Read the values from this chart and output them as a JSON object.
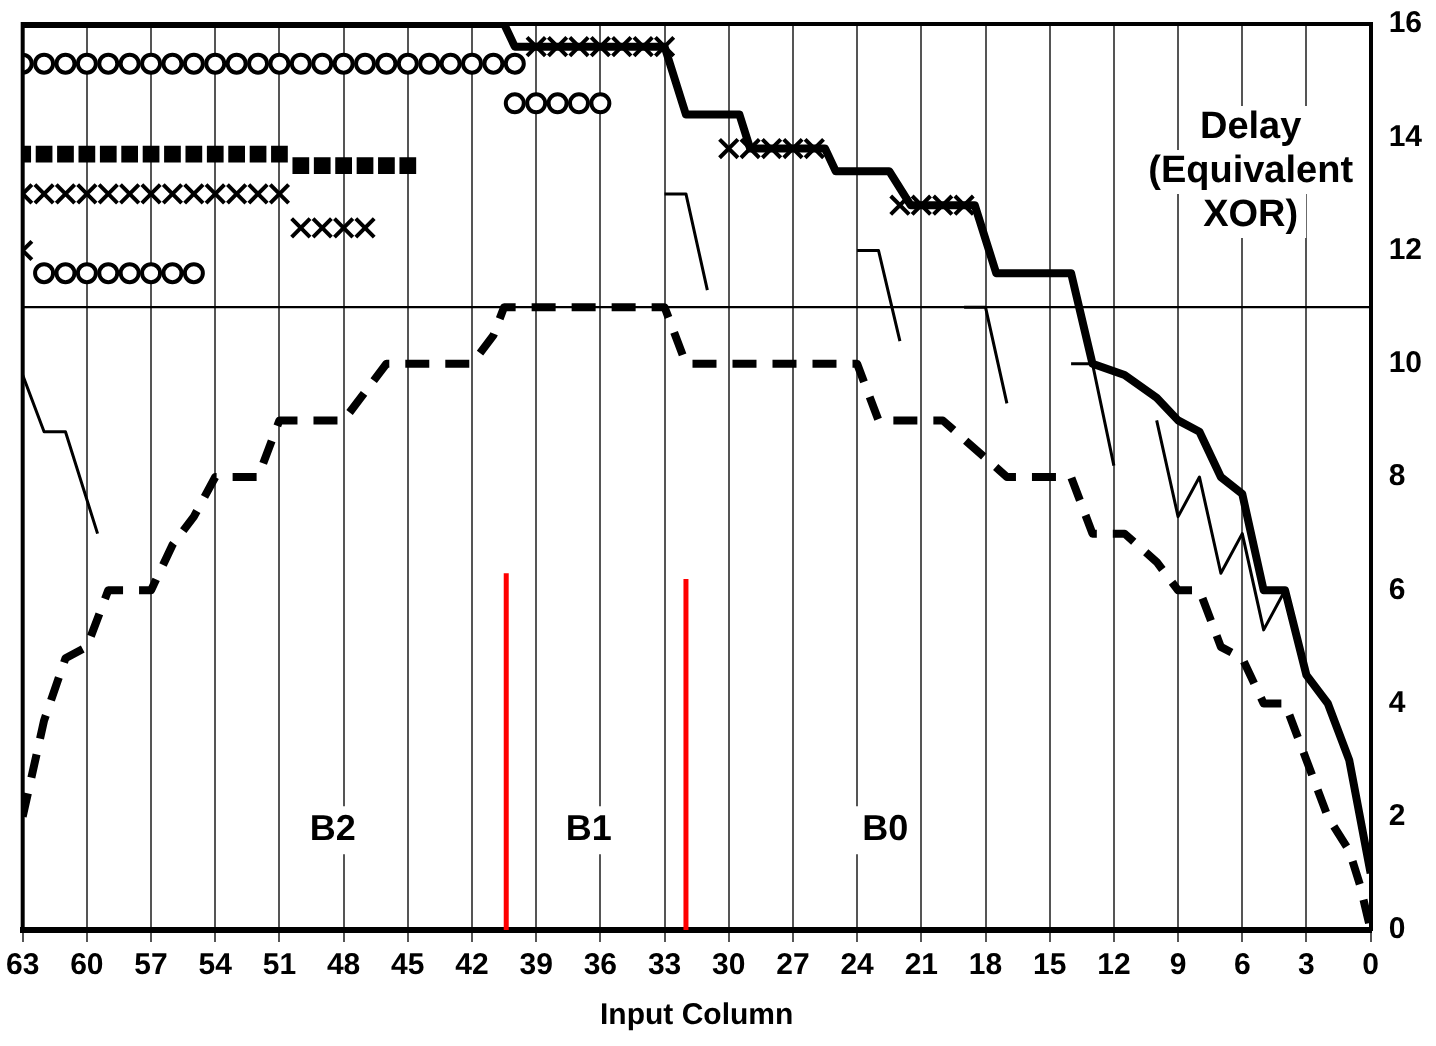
{
  "chart_data": {
    "type": "line",
    "xlabel": "Input Column",
    "ylabel": "Delay (Equivalent XOR)",
    "xlim": [
      63,
      0
    ],
    "xticks": [
      63,
      60,
      57,
      54,
      51,
      48,
      45,
      42,
      39,
      36,
      33,
      30,
      27,
      24,
      21,
      18,
      15,
      12,
      9,
      6,
      3,
      0
    ],
    "ylim": [
      0,
      16
    ],
    "yticks": [
      0,
      2,
      4,
      6,
      8,
      10,
      12,
      14,
      16
    ],
    "grid": "x",
    "ref_lines": [
      {
        "axis": "y",
        "value": 11,
        "color": "#000000"
      }
    ],
    "annotations": [
      "B2",
      "B1",
      "B0"
    ],
    "series": [
      {
        "color": "#000000",
        "line_style": "solid",
        "x": [
          63,
          40.5,
          40,
          33,
          32,
          29.5,
          29,
          25.5,
          25,
          22.5,
          21.5,
          18.5,
          17.5,
          14,
          13,
          11.5,
          10,
          9,
          8,
          7,
          6,
          5,
          4,
          3,
          2,
          1,
          0
        ],
        "values": [
          16,
          16,
          15.6,
          15.6,
          14.4,
          14.4,
          13.8,
          13.8,
          13.4,
          13.4,
          12.8,
          12.8,
          11.6,
          11.6,
          10,
          9.8,
          9.4,
          9,
          8.8,
          8,
          7.7,
          6,
          6,
          4.5,
          4,
          3,
          1
        ]
      },
      {
        "color": "#000000",
        "line_style": "dashed",
        "x": [
          63,
          62,
          61,
          60,
          59,
          57,
          56,
          55,
          54,
          52,
          51,
          48,
          46,
          42,
          41,
          40.5,
          33,
          32,
          24,
          23,
          20,
          17,
          14,
          13,
          11.5,
          10,
          9,
          8,
          7,
          6,
          5,
          4,
          3,
          2,
          1,
          0.5,
          0
        ],
        "values": [
          2,
          3.7,
          4.8,
          5,
          6,
          6,
          6.8,
          7.3,
          8,
          8,
          9,
          9,
          10,
          10,
          10.5,
          11,
          11,
          10,
          10,
          9,
          9,
          8,
          8,
          7,
          7,
          6.5,
          6,
          6,
          5,
          4.8,
          4,
          4,
          3,
          2,
          1.4,
          0.8,
          0
        ]
      },
      {
        "color": "#000000",
        "line_style": "solid",
        "x": [
          63,
          62,
          61,
          59.5,
          59,
          33,
          32,
          31,
          30,
          24,
          23,
          22,
          21,
          19,
          18,
          17,
          16,
          14,
          13,
          12,
          11,
          10,
          9,
          8,
          7,
          6,
          5,
          4
        ],
        "values": [
          9.8,
          8.8,
          8.8,
          7,
          null,
          13,
          13,
          11.3,
          null,
          12,
          12,
          10.4,
          null,
          11,
          11,
          9.3,
          null,
          10,
          10,
          8.2,
          null,
          9,
          7.3,
          8,
          6.3,
          7,
          5.3,
          6
        ]
      },
      {
        "type": "scatter",
        "marker": "circle",
        "color": "#000000",
        "x": [
          63,
          62,
          61,
          60,
          59,
          58,
          57,
          56,
          55,
          54,
          53,
          52,
          51,
          50,
          49,
          48,
          47,
          46,
          45,
          44,
          43,
          42,
          41,
          40,
          62,
          61,
          60,
          59,
          58,
          57,
          56,
          55,
          40,
          39,
          38,
          37,
          36
        ],
        "values": [
          15.3,
          15.3,
          15.3,
          15.3,
          15.3,
          15.3,
          15.3,
          15.3,
          15.3,
          15.3,
          15.3,
          15.3,
          15.3,
          15.3,
          15.3,
          15.3,
          15.3,
          15.3,
          15.3,
          15.3,
          15.3,
          15.3,
          15.3,
          15.3,
          11.6,
          11.6,
          11.6,
          11.6,
          11.6,
          11.6,
          11.6,
          11.6,
          14.6,
          14.6,
          14.6,
          14.6,
          14.6
        ]
      },
      {
        "type": "scatter",
        "marker": "square",
        "color": "#000000",
        "x": [
          63,
          62,
          61,
          60,
          59,
          58,
          57,
          56,
          55,
          54,
          53,
          52,
          51,
          50,
          49,
          48,
          47,
          46,
          45
        ],
        "values": [
          13.7,
          13.7,
          13.7,
          13.7,
          13.7,
          13.7,
          13.7,
          13.7,
          13.7,
          13.7,
          13.7,
          13.7,
          13.7,
          13.5,
          13.5,
          13.5,
          13.5,
          13.5,
          13.5
        ]
      },
      {
        "type": "scatter",
        "marker": "cross",
        "color": "#000000",
        "x": [
          63,
          62,
          61,
          60,
          59,
          58,
          57,
          56,
          55,
          54,
          53,
          52,
          51,
          50,
          49,
          48,
          47,
          63,
          39,
          38,
          37,
          36,
          35,
          34,
          33,
          30,
          29,
          28,
          27,
          26,
          22,
          21,
          20,
          19
        ],
        "values": [
          13,
          13,
          13,
          13,
          13,
          13,
          13,
          13,
          13,
          13,
          13,
          13,
          13,
          12.4,
          12.4,
          12.4,
          12.4,
          12,
          15.6,
          15.6,
          15.6,
          15.6,
          15.6,
          15.6,
          15.6,
          13.8,
          13.8,
          13.8,
          13.8,
          13.8,
          12.8,
          12.8,
          12.8,
          12.8
        ]
      },
      {
        "color": "#ff0000",
        "line_style": "solid",
        "x": [
          40.4,
          40.4
        ],
        "values": [
          0,
          6.3
        ]
      },
      {
        "color": "#ff0000",
        "line_style": "solid",
        "x": [
          32,
          32
        ],
        "values": [
          0,
          6.2
        ]
      }
    ]
  }
}
